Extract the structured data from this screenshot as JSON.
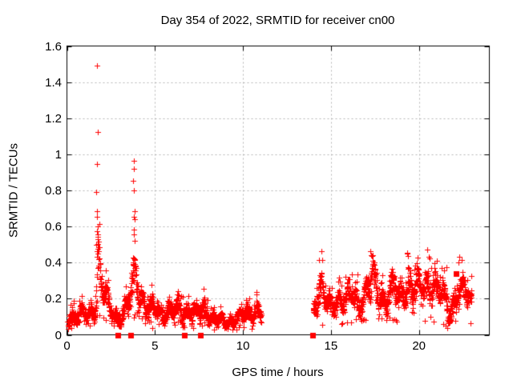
{
  "chart_data": {
    "type": "scatter",
    "title": "Day 354 of 2022, SRMTID for receiver cn00",
    "xlabel": "GPS time / hours",
    "ylabel": "SRMTID / TECUs",
    "xlim": [
      0,
      24
    ],
    "ylim": [
      0,
      1.6
    ],
    "xticks": [
      0,
      5,
      10,
      15,
      20
    ],
    "xtick_labels": [
      "0",
      "5",
      "10",
      "15",
      "20"
    ],
    "yticks": [
      0,
      0.2,
      0.4,
      0.6,
      0.8,
      1,
      1.2,
      1.4,
      1.6
    ],
    "ytick_labels": [
      "0",
      "0.2",
      "0.4",
      "0.6",
      "0.8",
      "1",
      "1.2",
      "1.4",
      "1.6"
    ],
    "grid": {
      "show": true,
      "color": "#b4b4b4",
      "dash": [
        2,
        3
      ]
    },
    "frame_color": "#000000",
    "point_color": "#ff0000",
    "marker_px": 7,
    "sample_interval_hours": 0.00833,
    "seed": 3542022,
    "series": [
      {
        "name": "srmtid-plus-markers",
        "marker": "plus",
        "segments": [
          [
            0.03,
            11.05
          ],
          [
            13.98,
            23.0
          ]
        ],
        "band_knots": [
          [
            0.0,
            0.1,
            0.05
          ],
          [
            0.5,
            0.1,
            0.06
          ],
          [
            1.0,
            0.11,
            0.05
          ],
          [
            1.5,
            0.12,
            0.05
          ],
          [
            1.65,
            0.25,
            0.14
          ],
          [
            1.75,
            0.42,
            0.18
          ],
          [
            1.9,
            0.3,
            0.14
          ],
          [
            2.1,
            0.22,
            0.1
          ],
          [
            2.4,
            0.14,
            0.07
          ],
          [
            2.8,
            0.1,
            0.06
          ],
          [
            3.2,
            0.11,
            0.06
          ],
          [
            3.5,
            0.16,
            0.09
          ],
          [
            3.75,
            0.33,
            0.16
          ],
          [
            3.95,
            0.36,
            0.16
          ],
          [
            4.15,
            0.24,
            0.11
          ],
          [
            4.4,
            0.15,
            0.07
          ],
          [
            4.8,
            0.14,
            0.07
          ],
          [
            5.3,
            0.13,
            0.06
          ],
          [
            5.9,
            0.12,
            0.06
          ],
          [
            6.4,
            0.14,
            0.07
          ],
          [
            6.9,
            0.12,
            0.06
          ],
          [
            7.4,
            0.12,
            0.06
          ],
          [
            7.9,
            0.14,
            0.08
          ],
          [
            8.4,
            0.09,
            0.05
          ],
          [
            8.9,
            0.07,
            0.04
          ],
          [
            9.4,
            0.08,
            0.04
          ],
          [
            9.9,
            0.11,
            0.05
          ],
          [
            10.4,
            0.12,
            0.05
          ],
          [
            10.8,
            0.14,
            0.06
          ],
          [
            11.05,
            0.12,
            0.05
          ],
          [
            13.98,
            0.14,
            0.08
          ],
          [
            14.3,
            0.27,
            0.12
          ],
          [
            14.65,
            0.18,
            0.08
          ],
          [
            15.0,
            0.16,
            0.07
          ],
          [
            15.4,
            0.2,
            0.08
          ],
          [
            15.8,
            0.18,
            0.08
          ],
          [
            16.2,
            0.23,
            0.09
          ],
          [
            16.6,
            0.17,
            0.07
          ],
          [
            17.0,
            0.23,
            0.1
          ],
          [
            17.35,
            0.31,
            0.13
          ],
          [
            17.7,
            0.22,
            0.09
          ],
          [
            18.1,
            0.2,
            0.09
          ],
          [
            18.5,
            0.25,
            0.1
          ],
          [
            18.9,
            0.21,
            0.09
          ],
          [
            19.35,
            0.3,
            0.12
          ],
          [
            19.7,
            0.23,
            0.1
          ],
          [
            20.1,
            0.25,
            0.1
          ],
          [
            20.5,
            0.29,
            0.1
          ],
          [
            20.9,
            0.27,
            0.11
          ],
          [
            21.3,
            0.22,
            0.1
          ],
          [
            21.7,
            0.14,
            0.11
          ],
          [
            22.1,
            0.22,
            0.09
          ],
          [
            22.5,
            0.25,
            0.09
          ],
          [
            23.0,
            0.19,
            0.07
          ]
        ],
        "extra_points": [
          [
            1.73,
            1.49
          ],
          [
            1.745,
            1.125
          ],
          [
            1.72,
            0.945
          ],
          [
            1.64,
            0.79
          ],
          [
            1.71,
            0.685
          ],
          [
            1.715,
            0.655
          ],
          [
            1.74,
            0.6
          ],
          [
            1.7,
            0.575
          ],
          [
            1.755,
            0.555
          ],
          [
            1.77,
            0.53
          ],
          [
            1.68,
            0.5
          ],
          [
            3.78,
            0.965
          ],
          [
            3.785,
            0.92
          ],
          [
            3.775,
            0.855
          ],
          [
            3.79,
            0.8
          ],
          [
            3.83,
            0.685
          ],
          [
            3.82,
            0.655
          ],
          [
            3.84,
            0.64
          ],
          [
            3.81,
            0.585
          ],
          [
            3.8,
            0.555
          ],
          [
            3.86,
            0.52
          ],
          [
            14.32,
            0.415
          ],
          [
            17.25,
            0.465
          ],
          [
            17.3,
            0.44
          ],
          [
            19.35,
            0.455
          ],
          [
            19.4,
            0.435
          ],
          [
            20.55,
            0.43
          ],
          [
            21.0,
            0.41
          ],
          [
            22.3,
            0.43
          ],
          [
            22.25,
            0.4
          ]
        ]
      },
      {
        "name": "flag-square-markers",
        "marker": "square",
        "points": [
          [
            2.9,
            0
          ],
          [
            3.64,
            0
          ],
          [
            6.66,
            0
          ],
          [
            7.56,
            0
          ],
          [
            13.95,
            0
          ],
          [
            22.1,
            0.34
          ]
        ]
      }
    ]
  }
}
